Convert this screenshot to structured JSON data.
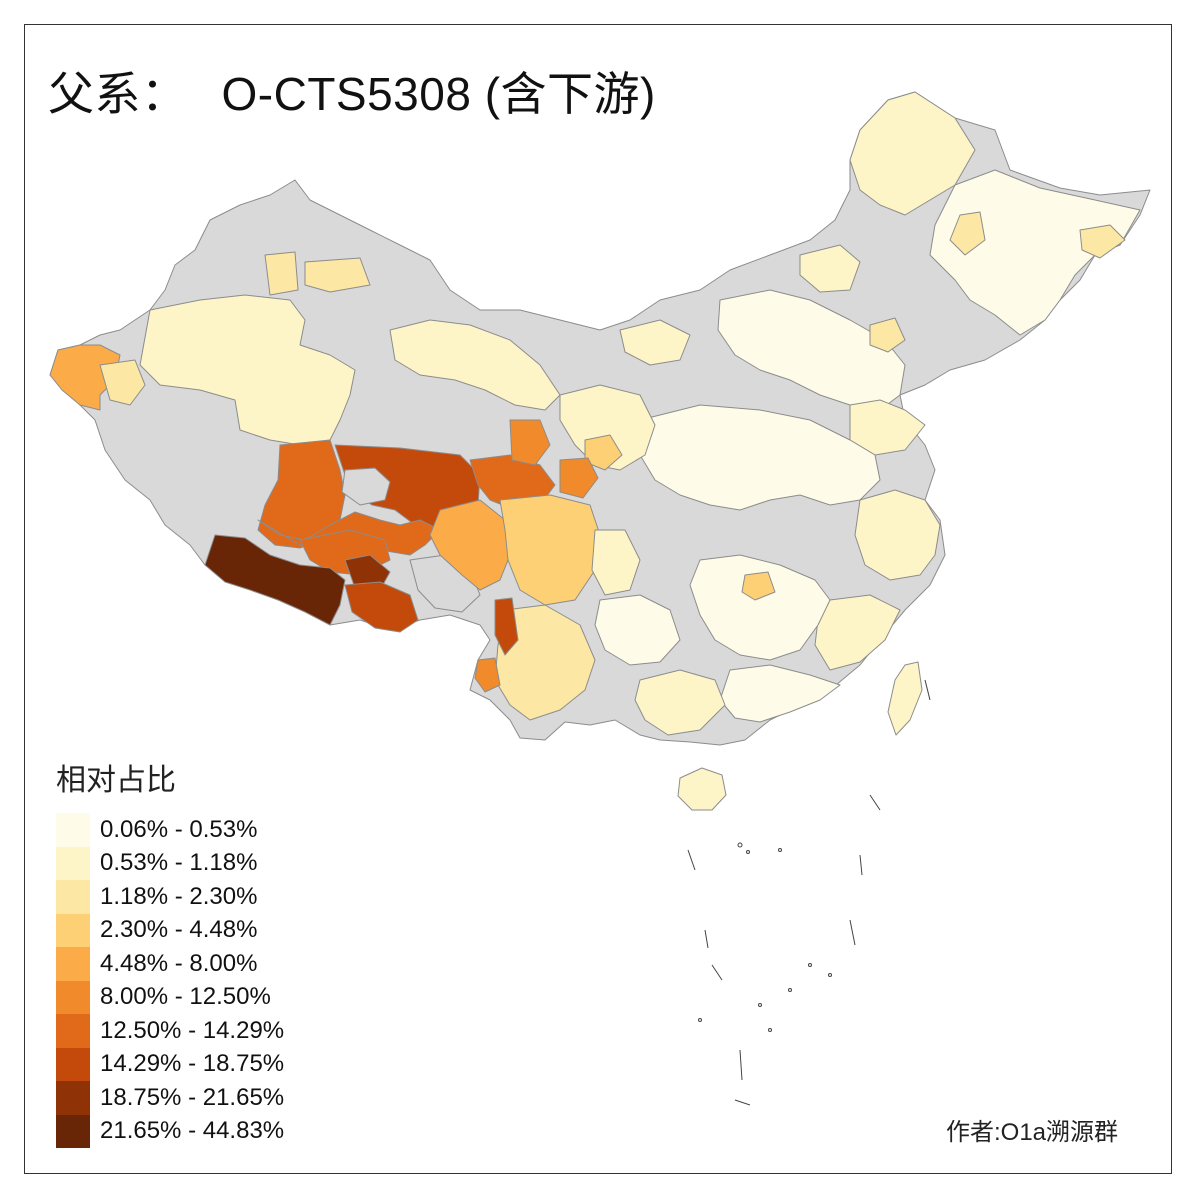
{
  "title": {
    "prefix": "父系：",
    "haplogroup": "O-CTS5308 (含下游)"
  },
  "legend": {
    "title": "相对占比",
    "classes": [
      {
        "label": "0.06% - 0.53%",
        "color": "#fefce8"
      },
      {
        "label": "0.53% - 1.18%",
        "color": "#fdf5c8"
      },
      {
        "label": "1.18% - 2.30%",
        "color": "#fde7a4"
      },
      {
        "label": "2.30% - 4.48%",
        "color": "#fdd076"
      },
      {
        "label": "4.48% - 8.00%",
        "color": "#fbac48"
      },
      {
        "label": "8.00% - 12.50%",
        "color": "#f08a2a"
      },
      {
        "label": "12.50% - 14.29%",
        "color": "#e1691a"
      },
      {
        "label": "14.29% - 18.75%",
        "color": "#c44a0c"
      },
      {
        "label": "18.75% - 21.65%",
        "color": "#8f3307"
      },
      {
        "label": "21.65% - 44.83%",
        "color": "#682607"
      }
    ]
  },
  "map_colors": {
    "no_data": "#d9d9d9",
    "border": "#8c8c8c"
  },
  "credit": "作者:O1a溯源群"
}
